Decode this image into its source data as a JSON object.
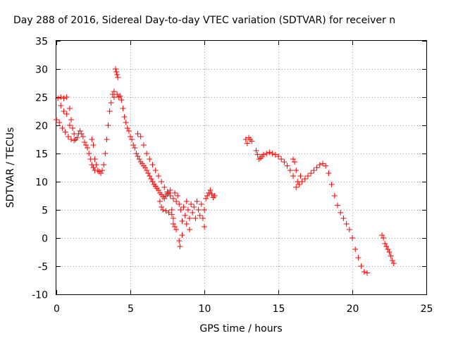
{
  "chart_data": {
    "type": "scatter",
    "title": "Day 288 of 2016, Sidereal Day-to-day VTEC variation (SDTVAR) for receiver n",
    "xlabel": "GPS time / hours",
    "ylabel": "SDTVAR / TECUs",
    "xlim": [
      0,
      25
    ],
    "ylim": [
      -10,
      35
    ],
    "x_ticks": [
      0,
      5,
      10,
      15,
      20,
      25
    ],
    "y_ticks": [
      -10,
      -5,
      0,
      5,
      10,
      15,
      20,
      25,
      30,
      35
    ],
    "grid": true,
    "marker": "+",
    "color": "#ff0000",
    "series": [
      {
        "name": "",
        "points": [
          [
            0.0,
            21.0
          ],
          [
            0.1,
            24.8
          ],
          [
            0.2,
            20.5
          ],
          [
            0.3,
            25.0
          ],
          [
            0.3,
            23.5
          ],
          [
            0.4,
            19.5
          ],
          [
            0.5,
            24.8
          ],
          [
            0.5,
            22.5
          ],
          [
            0.6,
            18.8
          ],
          [
            0.7,
            25.0
          ],
          [
            0.7,
            22.0
          ],
          [
            0.8,
            18.0
          ],
          [
            0.9,
            23.0
          ],
          [
            0.9,
            20.0
          ],
          [
            1.0,
            17.5
          ],
          [
            1.0,
            21.0
          ],
          [
            1.1,
            19.5
          ],
          [
            1.2,
            17.3
          ],
          [
            1.2,
            18.5
          ],
          [
            1.3,
            17.5
          ],
          [
            1.4,
            17.8
          ],
          [
            1.5,
            18.5
          ],
          [
            1.6,
            19.0
          ],
          [
            1.7,
            18.5
          ],
          [
            1.8,
            18.0
          ],
          [
            1.9,
            17.0
          ],
          [
            2.0,
            16.5
          ],
          [
            2.1,
            16.0
          ],
          [
            2.2,
            15.0
          ],
          [
            2.3,
            14.0
          ],
          [
            2.4,
            13.0
          ],
          [
            2.4,
            17.5
          ],
          [
            2.5,
            12.5
          ],
          [
            2.5,
            16.5
          ],
          [
            2.6,
            12.0
          ],
          [
            2.6,
            14.0
          ],
          [
            2.7,
            13.0
          ],
          [
            2.8,
            12.0
          ],
          [
            2.9,
            11.8
          ],
          [
            3.0,
            11.5
          ],
          [
            3.1,
            12.0
          ],
          [
            3.2,
            13.0
          ],
          [
            3.3,
            15.0
          ],
          [
            3.4,
            17.5
          ],
          [
            3.5,
            20.0
          ],
          [
            3.6,
            22.5
          ],
          [
            3.7,
            24.0
          ],
          [
            3.8,
            25.5
          ],
          [
            3.9,
            26.0
          ],
          [
            3.9,
            25.0
          ],
          [
            4.0,
            30.0
          ],
          [
            4.05,
            29.5
          ],
          [
            4.1,
            29.0
          ],
          [
            4.15,
            28.5
          ],
          [
            4.1,
            25.5
          ],
          [
            4.2,
            25.0
          ],
          [
            4.3,
            25.2
          ],
          [
            4.4,
            24.5
          ],
          [
            4.5,
            23.0
          ],
          [
            4.6,
            21.5
          ],
          [
            4.7,
            20.5
          ],
          [
            4.8,
            19.5
          ],
          [
            4.9,
            19.0
          ],
          [
            5.0,
            18.0
          ],
          [
            5.1,
            17.5
          ],
          [
            5.2,
            16.5
          ],
          [
            5.3,
            16.0
          ],
          [
            5.4,
            15.0
          ],
          [
            5.5,
            14.5
          ],
          [
            5.6,
            14.0
          ],
          [
            5.7,
            13.5
          ],
          [
            5.8,
            13.2
          ],
          [
            5.9,
            12.8
          ],
          [
            6.0,
            12.5
          ],
          [
            6.1,
            12.0
          ],
          [
            6.2,
            11.5
          ],
          [
            6.3,
            11.0
          ],
          [
            6.4,
            10.5
          ],
          [
            6.5,
            10.0
          ],
          [
            6.6,
            9.5
          ],
          [
            6.7,
            9.2
          ],
          [
            6.8,
            8.8
          ],
          [
            6.9,
            8.5
          ],
          [
            7.0,
            8.0
          ],
          [
            7.1,
            7.7
          ],
          [
            7.2,
            7.3
          ],
          [
            7.3,
            7.0
          ],
          [
            7.4,
            7.5
          ],
          [
            7.5,
            7.8
          ],
          [
            7.6,
            8.0
          ],
          [
            7.7,
            8.5
          ],
          [
            5.5,
            18.5
          ],
          [
            5.7,
            18.0
          ],
          [
            5.9,
            16.5
          ],
          [
            6.1,
            15.0
          ],
          [
            6.3,
            14.0
          ],
          [
            6.5,
            13.0
          ],
          [
            6.7,
            12.0
          ],
          [
            6.9,
            11.0
          ],
          [
            7.1,
            10.0
          ],
          [
            7.3,
            9.0
          ],
          [
            7.5,
            8.2
          ],
          [
            7.7,
            7.5
          ],
          [
            7.9,
            7.0
          ],
          [
            8.1,
            6.5
          ],
          [
            7.0,
            6.5
          ],
          [
            7.1,
            5.5
          ],
          [
            7.2,
            5.0
          ],
          [
            7.4,
            4.8
          ],
          [
            7.6,
            4.5
          ],
          [
            7.8,
            4.2
          ],
          [
            7.9,
            3.5
          ],
          [
            8.0,
            2.0
          ],
          [
            8.0,
            8.0
          ],
          [
            7.8,
            5.0
          ],
          [
            7.9,
            2.5
          ],
          [
            8.1,
            1.5
          ],
          [
            8.2,
            7.5
          ],
          [
            8.3,
            6.0
          ],
          [
            8.3,
            -0.5
          ],
          [
            8.35,
            -1.5
          ],
          [
            8.4,
            5.0
          ],
          [
            8.5,
            3.0
          ],
          [
            8.5,
            0.5
          ],
          [
            8.6,
            5.5
          ],
          [
            8.7,
            4.0
          ],
          [
            8.8,
            2.5
          ],
          [
            8.8,
            6.5
          ],
          [
            8.9,
            5.0
          ],
          [
            9.0,
            3.5
          ],
          [
            9.0,
            1.5
          ],
          [
            9.1,
            6.0
          ],
          [
            9.2,
            4.5
          ],
          [
            9.3,
            5.5
          ],
          [
            9.4,
            3.5
          ],
          [
            9.5,
            6.5
          ],
          [
            9.6,
            5.0
          ],
          [
            9.7,
            4.0
          ],
          [
            9.8,
            6.0
          ],
          [
            9.9,
            3.5
          ],
          [
            10.0,
            2.0
          ],
          [
            10.0,
            5.0
          ],
          [
            10.1,
            7.0
          ],
          [
            10.2,
            7.5
          ],
          [
            10.3,
            8.0
          ],
          [
            10.4,
            8.5
          ],
          [
            10.5,
            7.8
          ],
          [
            10.6,
            7.2
          ],
          [
            10.7,
            7.5
          ],
          [
            12.8,
            17.5
          ],
          [
            12.9,
            16.8
          ],
          [
            13.0,
            17.8
          ],
          [
            13.1,
            17.5
          ],
          [
            13.2,
            17.2
          ],
          [
            13.5,
            15.5
          ],
          [
            13.6,
            14.8
          ],
          [
            13.7,
            14.0
          ],
          [
            13.8,
            14.2
          ],
          [
            13.9,
            14.5
          ],
          [
            14.0,
            14.8
          ],
          [
            14.2,
            15.0
          ],
          [
            14.4,
            15.2
          ],
          [
            14.6,
            15.0
          ],
          [
            14.8,
            14.8
          ],
          [
            15.0,
            14.5
          ],
          [
            15.2,
            14.0
          ],
          [
            15.4,
            13.5
          ],
          [
            15.6,
            12.8
          ],
          [
            15.8,
            12.0
          ],
          [
            16.0,
            11.0
          ],
          [
            16.0,
            14.0
          ],
          [
            16.1,
            13.5
          ],
          [
            16.2,
            12.0
          ],
          [
            16.2,
            9.0
          ],
          [
            16.3,
            10.0
          ],
          [
            16.4,
            9.5
          ],
          [
            16.5,
            11.0
          ],
          [
            16.6,
            10.0
          ],
          [
            16.8,
            10.5
          ],
          [
            17.0,
            11.0
          ],
          [
            17.2,
            11.5
          ],
          [
            17.4,
            12.0
          ],
          [
            17.6,
            12.5
          ],
          [
            17.8,
            13.0
          ],
          [
            18.0,
            13.2
          ],
          [
            18.2,
            12.8
          ],
          [
            18.4,
            11.5
          ],
          [
            18.6,
            9.5
          ],
          [
            18.8,
            7.5
          ],
          [
            19.0,
            5.8
          ],
          [
            19.2,
            4.5
          ],
          [
            19.4,
            3.5
          ],
          [
            19.6,
            2.5
          ],
          [
            19.8,
            1.5
          ],
          [
            20.0,
            0.0
          ],
          [
            20.2,
            -2.0
          ],
          [
            20.4,
            -3.5
          ],
          [
            20.6,
            -5.0
          ],
          [
            20.8,
            -6.0
          ],
          [
            21.0,
            -6.2
          ],
          [
            22.0,
            0.5
          ],
          [
            22.1,
            0.0
          ],
          [
            22.2,
            -1.0
          ],
          [
            22.3,
            -1.5
          ],
          [
            22.4,
            -2.0
          ],
          [
            22.5,
            -2.5
          ],
          [
            22.6,
            -3.2
          ],
          [
            22.7,
            -4.0
          ],
          [
            22.8,
            -4.5
          ]
        ]
      }
    ]
  }
}
